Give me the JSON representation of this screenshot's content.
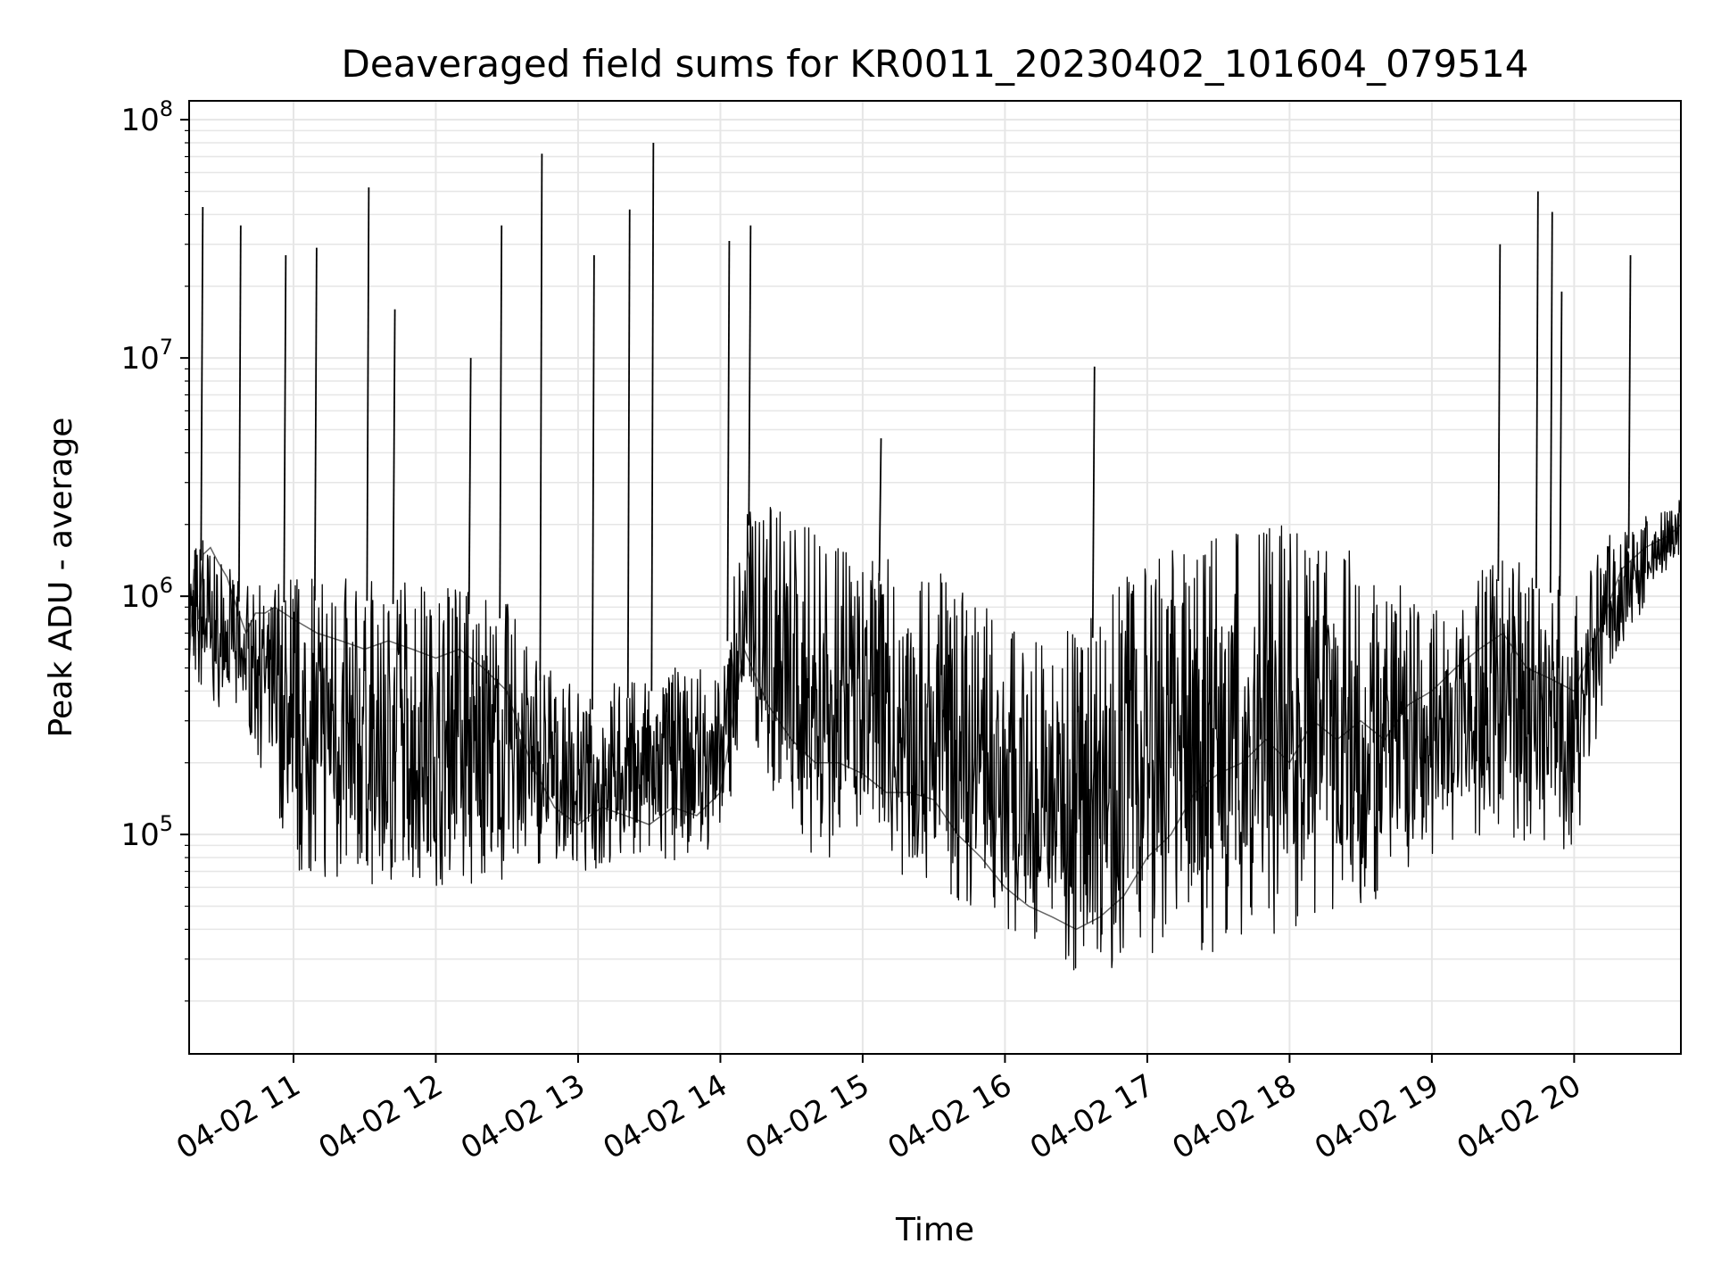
{
  "chart_data": {
    "type": "line",
    "title": "Deaveraged field sums for KR0011_20230402_101604_079514",
    "xlabel": "Time",
    "ylabel": "Peak ADU - average",
    "yscale": "log",
    "ylim": [
      12000,
      120000000
    ],
    "xlim": [
      "04-02 10:16",
      "04-02 20:45"
    ],
    "grid": true,
    "line_color": "#000000",
    "grid_color": "#e6e6e6",
    "x_ticks": [
      "04-02 11",
      "04-02 12",
      "04-02 13",
      "04-02 14",
      "04-02 15",
      "04-02 16",
      "04-02 17",
      "04-02 18",
      "04-02 19",
      "04-02 20"
    ],
    "y_ticks": [
      {
        "value": 100000,
        "base": "10",
        "exp": "5"
      },
      {
        "value": 1000000,
        "base": "10",
        "exp": "6"
      },
      {
        "value": 10000000,
        "base": "10",
        "exp": "7"
      },
      {
        "value": 100000000,
        "base": "10",
        "exp": "8"
      }
    ],
    "series": [
      {
        "x": [
          "04-02 10:16",
          "04-02 10:18",
          "04-02 10:20",
          "04-02 10:22",
          "04-02 10:25",
          "04-02 10:28",
          "04-02 10:32",
          "04-02 10:36",
          "04-02 10:40",
          "04-02 10:44",
          "04-02 10:48",
          "04-02 10:52",
          "04-02 10:56",
          "04-02 11:00",
          "04-02 11:10",
          "04-02 11:20",
          "04-02 11:30",
          "04-02 11:40",
          "04-02 11:50",
          "04-02 12:00",
          "04-02 12:10",
          "04-02 12:20",
          "04-02 12:30",
          "04-02 12:40",
          "04-02 12:50",
          "04-02 13:00",
          "04-02 13:10",
          "04-02 13:20",
          "04-02 13:30",
          "04-02 13:40",
          "04-02 13:50",
          "04-02 14:00",
          "04-02 14:10",
          "04-02 14:20",
          "04-02 14:30",
          "04-02 14:40",
          "04-02 14:50",
          "04-02 15:00",
          "04-02 15:10",
          "04-02 15:20",
          "04-02 15:30",
          "04-02 15:40",
          "04-02 15:50",
          "04-02 16:00",
          "04-02 16:10",
          "04-02 16:20",
          "04-02 16:30",
          "04-02 16:40",
          "04-02 16:50",
          "04-02 17:00",
          "04-02 17:10",
          "04-02 17:20",
          "04-02 17:30",
          "04-02 17:40",
          "04-02 17:50",
          "04-02 18:00",
          "04-02 18:10",
          "04-02 18:20",
          "04-02 18:30",
          "04-02 18:40",
          "04-02 18:50",
          "04-02 19:00",
          "04-02 19:10",
          "04-02 19:20",
          "04-02 19:30",
          "04-02 19:40",
          "04-02 19:50",
          "04-02 20:00",
          "04-02 20:10",
          "04-02 20:20",
          "04-02 20:30",
          "04-02 20:40",
          "04-02 20:45"
        ],
        "y": [
          500000,
          1300000,
          800000,
          1500000,
          1600000,
          1400000,
          1200000,
          900000,
          700000,
          850000,
          850000,
          900000,
          850000,
          800000,
          700000,
          650000,
          600000,
          650000,
          600000,
          550000,
          600000,
          500000,
          400000,
          200000,
          130000,
          110000,
          130000,
          120000,
          110000,
          130000,
          120000,
          150000,
          600000,
          350000,
          250000,
          200000,
          200000,
          180000,
          150000,
          150000,
          140000,
          100000,
          80000,
          60000,
          50000,
          45000,
          40000,
          45000,
          55000,
          80000,
          100000,
          150000,
          180000,
          200000,
          250000,
          200000,
          300000,
          250000,
          300000,
          250000,
          350000,
          400000,
          500000,
          600000,
          700000,
          500000,
          450000,
          400000,
          700000,
          1300000,
          1600000,
          1800000,
          2000000
        ]
      }
    ],
    "spikes": [
      {
        "x": "04-02 10:21",
        "y": 43000000
      },
      {
        "x": "04-02 10:37",
        "y": 36000000
      },
      {
        "x": "04-02 10:56",
        "y": 27000000
      },
      {
        "x": "04-02 11:09",
        "y": 29000000
      },
      {
        "x": "04-02 11:31",
        "y": 52000000
      },
      {
        "x": "04-02 11:42",
        "y": 16000000
      },
      {
        "x": "04-02 12:14",
        "y": 10000000
      },
      {
        "x": "04-02 12:27",
        "y": 36000000
      },
      {
        "x": "04-02 12:44",
        "y": 72000000
      },
      {
        "x": "04-02 13:06",
        "y": 27000000
      },
      {
        "x": "04-02 13:21",
        "y": 42000000
      },
      {
        "x": "04-02 13:31",
        "y": 80000000
      },
      {
        "x": "04-02 14:03",
        "y": 31000000
      },
      {
        "x": "04-02 14:12",
        "y": 36000000
      },
      {
        "x": "04-02 15:07",
        "y": 4600000
      },
      {
        "x": "04-02 16:37",
        "y": 9200000
      },
      {
        "x": "04-02 19:28",
        "y": 30000000
      },
      {
        "x": "04-02 19:44",
        "y": 50000000
      },
      {
        "x": "04-02 19:50",
        "y": 41000000
      },
      {
        "x": "04-02 19:54",
        "y": 19000000
      },
      {
        "x": "04-02 20:23",
        "y": 27000000
      }
    ],
    "band": {
      "x": [
        "04-02 10:16",
        "04-02 10:40",
        "04-02 11:00",
        "04-02 11:30",
        "04-02 12:00",
        "04-02 12:30",
        "04-02 12:40",
        "04-02 13:00",
        "04-02 13:30",
        "04-02 14:00",
        "04-02 14:10",
        "04-02 14:30",
        "04-02 15:00",
        "04-02 15:30",
        "04-02 16:00",
        "04-02 16:30",
        "04-02 17:00",
        "04-02 17:30",
        "04-02 18:00",
        "04-02 18:30",
        "04-02 19:00",
        "04-02 19:30",
        "04-02 20:00",
        "04-02 20:15",
        "04-02 20:45"
      ],
      "low": [
        400000,
        300000,
        70000,
        60000,
        60000,
        55000,
        70000,
        70000,
        75000,
        80000,
        300000,
        90000,
        70000,
        60000,
        40000,
        25000,
        30000,
        30000,
        40000,
        45000,
        80000,
        100000,
        80000,
        500000,
        1500000
      ],
      "high": [
        2000000,
        1100000,
        1200000,
        1200000,
        1100000,
        1000000,
        600000,
        400000,
        500000,
        500000,
        2500000,
        2300000,
        1500000,
        1300000,
        800000,
        700000,
        1500000,
        1800000,
        2000000,
        1500000,
        900000,
        1500000,
        1200000,
        1800000,
        2600000
      ]
    }
  }
}
